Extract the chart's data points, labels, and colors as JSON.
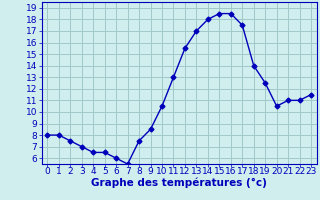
{
  "x": [
    0,
    1,
    2,
    3,
    4,
    5,
    6,
    7,
    8,
    9,
    10,
    11,
    12,
    13,
    14,
    15,
    16,
    17,
    18,
    19,
    20,
    21,
    22,
    23
  ],
  "y": [
    8,
    8,
    7.5,
    7,
    6.5,
    6.5,
    6,
    5.5,
    7.5,
    8.5,
    10.5,
    13,
    15.5,
    17,
    18,
    18.5,
    18.5,
    17.5,
    14,
    12.5,
    10.5,
    11,
    11,
    11.5
  ],
  "line_color": "#0000bb",
  "marker": "D",
  "marker_size": 2.5,
  "bg_color": "#d0eeee",
  "grid_color": "#a0c8c8",
  "xlabel": "Graphe des températures (°c)",
  "xlabel_color": "#0000bb",
  "xlabel_fontsize": 7.5,
  "tick_color": "#0000bb",
  "tick_fontsize": 6.5,
  "ylim": [
    5.5,
    19.5
  ],
  "xlim": [
    -0.5,
    23.5
  ],
  "yticks": [
    6,
    7,
    8,
    9,
    10,
    11,
    12,
    13,
    14,
    15,
    16,
    17,
    18,
    19
  ],
  "xticks": [
    0,
    1,
    2,
    3,
    4,
    5,
    6,
    7,
    8,
    9,
    10,
    11,
    12,
    13,
    14,
    15,
    16,
    17,
    18,
    19,
    20,
    21,
    22,
    23
  ]
}
